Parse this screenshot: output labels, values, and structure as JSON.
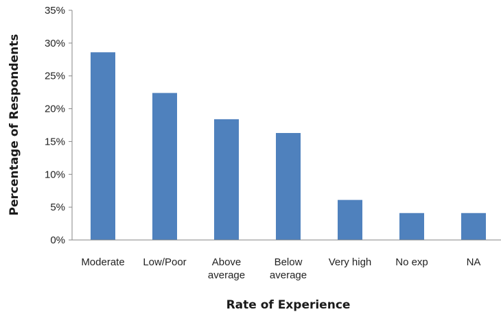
{
  "chart_data": {
    "type": "bar",
    "title": "",
    "xlabel": "Rate of Experience",
    "ylabel": "Percentage of Respondents",
    "categories": [
      [
        "Moderate"
      ],
      [
        "Low/Poor"
      ],
      [
        "Above",
        "average"
      ],
      [
        "Below",
        "average"
      ],
      [
        "Very high"
      ],
      [
        "No exp"
      ],
      [
        "NA"
      ]
    ],
    "values": [
      28.6,
      22.4,
      18.4,
      16.3,
      6.1,
      4.1,
      4.1
    ],
    "ylim": [
      0,
      35
    ],
    "yticks": [
      0,
      5,
      10,
      15,
      20,
      25,
      30,
      35
    ],
    "ytick_labels": [
      "0%",
      "5%",
      "10%",
      "15%",
      "20%",
      "25%",
      "30%",
      "35%"
    ],
    "bar_color": "#4f81bd",
    "grid": false,
    "legend": "none"
  }
}
